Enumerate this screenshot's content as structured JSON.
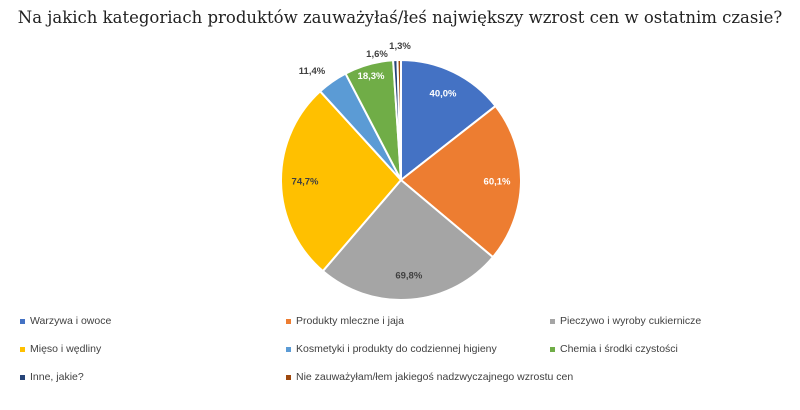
{
  "chart_data": {
    "type": "pie",
    "title": "Na jakich kategoriach produktów zauważyłaś/łeś największy wzrost cen w ostatnim czasie?",
    "series": [
      {
        "name": "Warzywa i owoce",
        "value": 40.0,
        "label": "40,0%",
        "color": "#4472C4"
      },
      {
        "name": "Produkty mleczne i jaja",
        "value": 60.1,
        "label": "60,1%",
        "color": "#ED7D31"
      },
      {
        "name": "Pieczywo i wyroby cukiernicze",
        "value": 69.8,
        "label": "69,8%",
        "color": "#A5A5A5"
      },
      {
        "name": "Mięso i wędliny",
        "value": 74.7,
        "label": "74,7%",
        "color": "#FFC000"
      },
      {
        "name": "Kosmetyki i produkty do codziennej higieny",
        "value": 11.4,
        "label": "11,4%",
        "color": "#5B9BD5"
      },
      {
        "name": "Chemia i środki czystości",
        "value": 18.3,
        "label": "18,3%",
        "color": "#70AD47"
      },
      {
        "name": "Inne, jakie?",
        "value": 1.6,
        "label": "1,6%",
        "color": "#264478"
      },
      {
        "name": "Nie zauważyłam/łem jakiegoś nadzwyczajnego wzrostu cen",
        "value": 1.3,
        "label": "1,3%",
        "color": "#9E480E"
      }
    ],
    "legend_position": "bottom"
  }
}
